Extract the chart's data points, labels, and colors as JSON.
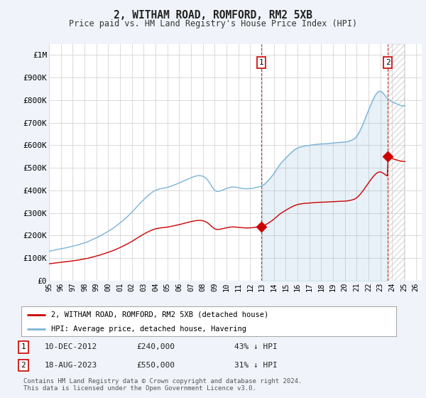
{
  "title": "2, WITHAM ROAD, ROMFORD, RM2 5XB",
  "subtitle": "Price paid vs. HM Land Registry's House Price Index (HPI)",
  "ylim": [
    0,
    1050000
  ],
  "yticks": [
    0,
    100000,
    200000,
    300000,
    400000,
    500000,
    600000,
    700000,
    800000,
    900000,
    1000000
  ],
  "ytick_labels": [
    "£0",
    "£100K",
    "£200K",
    "£300K",
    "£400K",
    "£500K",
    "£600K",
    "£700K",
    "£800K",
    "£900K",
    "£1M"
  ],
  "xlim_start": 1995.0,
  "xlim_end": 2026.5,
  "hpi_color": "#7ab4d8",
  "price_color": "#cc0000",
  "sale1_x": 2012.94,
  "sale1_y": 240000,
  "sale2_x": 2023.63,
  "sale2_y": 550000,
  "sale1_label": "1",
  "sale2_label": "2",
  "sale1_date": "10-DEC-2012",
  "sale1_price": "£240,000",
  "sale1_pct": "43% ↓ HPI",
  "sale2_date": "18-AUG-2023",
  "sale2_price": "£550,000",
  "sale2_pct": "31% ↓ HPI",
  "legend_line1": "2, WITHAM ROAD, ROMFORD, RM2 5XB (detached house)",
  "legend_line2": "HPI: Average price, detached house, Havering",
  "footer": "Contains HM Land Registry data © Crown copyright and database right 2024.\nThis data is licensed under the Open Government Licence v3.0.",
  "bg_color": "#f0f4fa",
  "plot_bg": "#ffffff",
  "hpi_base_1995": 130000,
  "sale1_hpi_base": 420000,
  "sale2_hpi_base": 790000
}
